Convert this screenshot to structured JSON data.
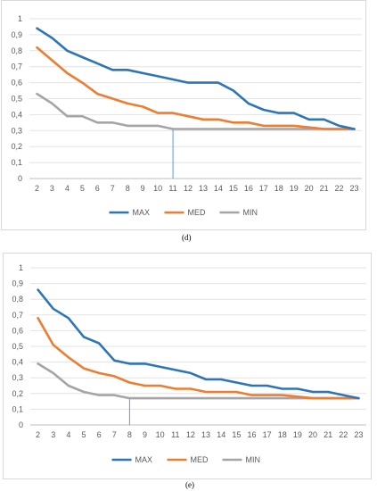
{
  "captions": {
    "d": "(d)",
    "e": "(e)"
  },
  "chart_data": [
    {
      "type": "line",
      "x": [
        2,
        3,
        4,
        5,
        6,
        7,
        8,
        9,
        10,
        11,
        12,
        13,
        14,
        15,
        16,
        17,
        18,
        19,
        20,
        21,
        22,
        23
      ],
      "ylim": [
        0,
        1
      ],
      "yticks": [
        "0",
        "0,1",
        "0,2",
        "0,3",
        "0,4",
        "0,5",
        "0,6",
        "0,7",
        "0,8",
        "0,9",
        "1"
      ],
      "grid": true,
      "legend": "bottom",
      "marker_x": 11,
      "series": [
        {
          "name": "MAX",
          "color": "#2e75b6",
          "values": [
            0.94,
            0.88,
            0.8,
            0.76,
            0.72,
            0.68,
            0.68,
            0.66,
            0.64,
            0.62,
            0.6,
            0.6,
            0.6,
            0.55,
            0.47,
            0.43,
            0.41,
            0.41,
            0.37,
            0.37,
            0.33,
            0.31
          ]
        },
        {
          "name": "MED",
          "color": "#ed7d31",
          "values": [
            0.82,
            0.74,
            0.66,
            0.6,
            0.53,
            0.5,
            0.47,
            0.45,
            0.41,
            0.41,
            0.39,
            0.37,
            0.37,
            0.35,
            0.35,
            0.33,
            0.33,
            0.33,
            0.32,
            0.31,
            0.31,
            0.31
          ]
        },
        {
          "name": "MIN",
          "color": "#a5a5a5",
          "values": [
            0.53,
            0.47,
            0.39,
            0.39,
            0.35,
            0.35,
            0.33,
            0.33,
            0.33,
            0.31,
            0.31,
            0.31,
            0.31,
            0.31,
            0.31,
            0.31,
            0.31,
            0.31,
            0.31,
            0.31,
            0.31,
            0.31
          ]
        }
      ]
    },
    {
      "type": "line",
      "x": [
        2,
        3,
        4,
        5,
        6,
        7,
        8,
        9,
        10,
        11,
        12,
        13,
        14,
        15,
        16,
        17,
        18,
        19,
        20,
        21,
        22,
        23
      ],
      "ylim": [
        0,
        1
      ],
      "yticks": [
        "0",
        "0,1",
        "0,2",
        "0,3",
        "0,4",
        "0,5",
        "0,6",
        "0,7",
        "0,8",
        "0,9",
        "1"
      ],
      "grid": true,
      "legend": "bottom",
      "marker_x": 8,
      "series": [
        {
          "name": "MAX",
          "color": "#2e75b6",
          "values": [
            0.86,
            0.74,
            0.68,
            0.56,
            0.52,
            0.41,
            0.39,
            0.39,
            0.37,
            0.35,
            0.33,
            0.29,
            0.29,
            0.27,
            0.25,
            0.25,
            0.23,
            0.23,
            0.21,
            0.21,
            0.19,
            0.17
          ]
        },
        {
          "name": "MED",
          "color": "#ed7d31",
          "values": [
            0.68,
            0.51,
            0.43,
            0.36,
            0.33,
            0.31,
            0.27,
            0.25,
            0.25,
            0.23,
            0.23,
            0.21,
            0.21,
            0.21,
            0.19,
            0.19,
            0.19,
            0.18,
            0.17,
            0.17,
            0.17,
            0.17
          ]
        },
        {
          "name": "MIN",
          "color": "#a5a5a5",
          "values": [
            0.39,
            0.33,
            0.25,
            0.21,
            0.19,
            0.19,
            0.17,
            0.17,
            0.17,
            0.17,
            0.17,
            0.17,
            0.17,
            0.17,
            0.17,
            0.17,
            0.17,
            0.17,
            0.17,
            0.17,
            0.17,
            0.17
          ]
        }
      ]
    }
  ]
}
